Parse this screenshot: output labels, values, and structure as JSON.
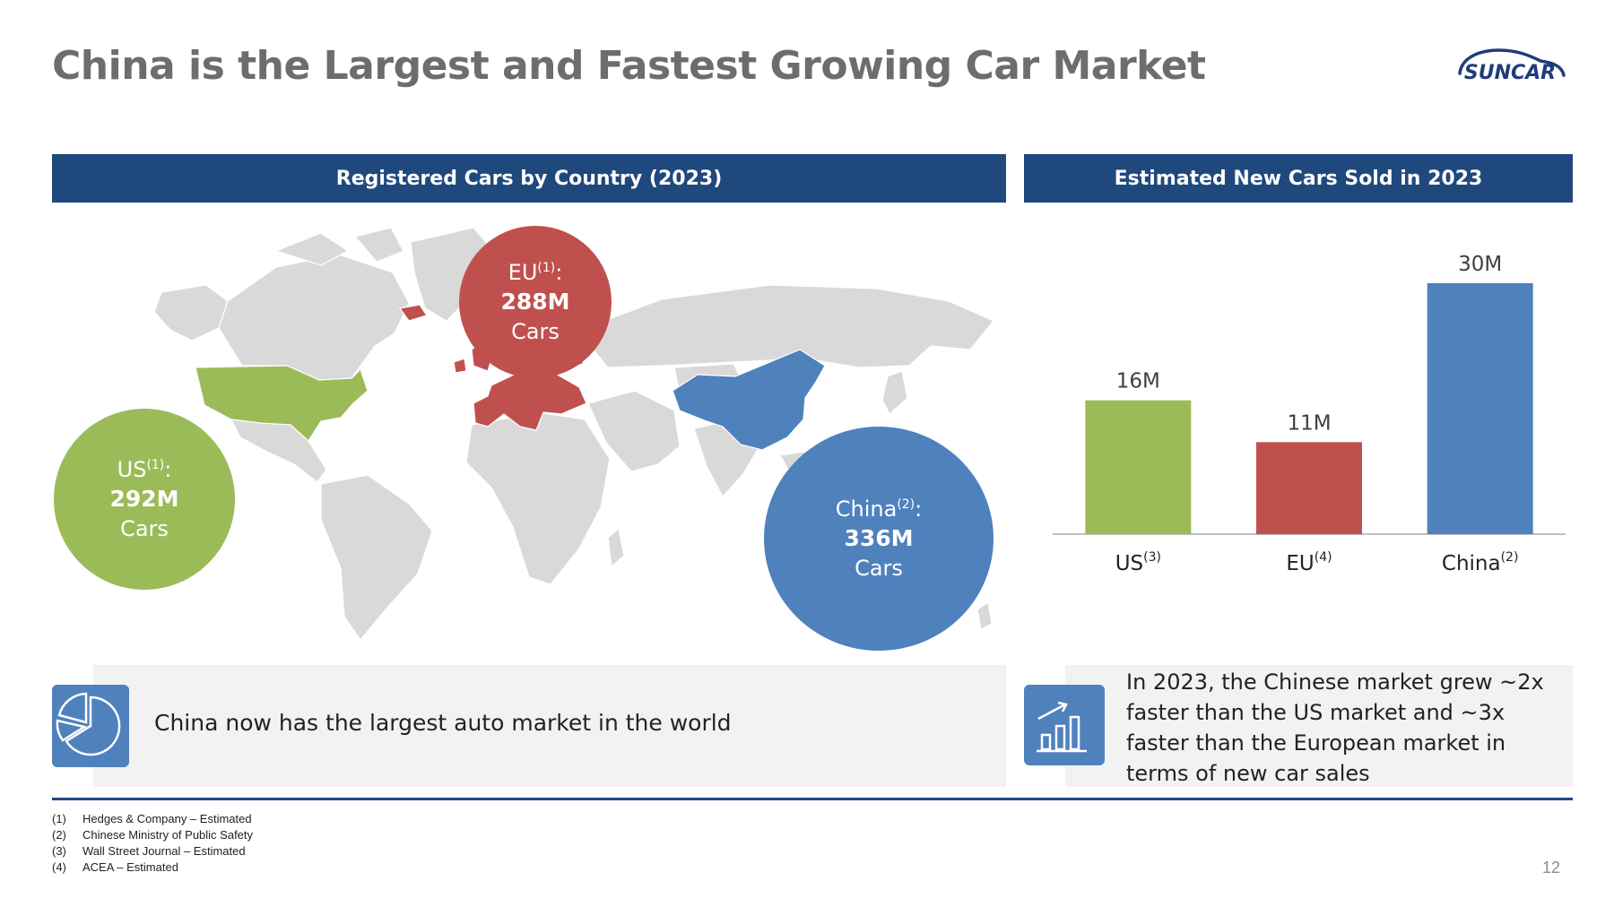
{
  "title": "China is the Largest and Fastest Growing Car Market",
  "logo": {
    "text": "SUNCAR"
  },
  "left_panel": {
    "header": "Registered Cars by Country (2023)",
    "bubbles": {
      "eu": {
        "label": "EU",
        "note": "(1)",
        "colon": ":",
        "value": "288M",
        "unit": "Cars"
      },
      "us": {
        "label": "US",
        "note": "(1)",
        "colon": ":",
        "value": "292M",
        "unit": "Cars"
      },
      "china": {
        "label": "China",
        "note": "(2)",
        "colon": ":",
        "value": "336M",
        "unit": "Cars"
      }
    },
    "callout": "China now has the largest auto market in the world"
  },
  "right_panel": {
    "header": "Estimated New Cars Sold in 2023",
    "callout": "In 2023, the Chinese market grew ~2x faster than the US market and ~3x faster than the European market in terms of new car sales"
  },
  "colors": {
    "navy": "#1f497d",
    "green": "#9bbb59",
    "red": "#c0504d",
    "blue": "#4f81bd",
    "map_gray": "#d9d9d9"
  },
  "chart_data": {
    "type": "bar",
    "title": "Estimated New Cars Sold in 2023",
    "categories": [
      "US",
      "EU",
      "China"
    ],
    "category_notes": [
      "(3)",
      "(4)",
      "(2)"
    ],
    "values": [
      16,
      11,
      30
    ],
    "data_labels": [
      "16M",
      "11M",
      "30M"
    ],
    "bar_colors": [
      "#9bbb59",
      "#c0504d",
      "#4f81bd"
    ],
    "ylim": [
      0,
      30
    ],
    "grid": false
  },
  "footnotes": [
    {
      "num": "(1)",
      "text": "Hedges & Company – Estimated"
    },
    {
      "num": "(2)",
      "text": "Chinese Ministry of Public Safety"
    },
    {
      "num": "(3)",
      "text": "Wall Street Journal – Estimated"
    },
    {
      "num": "(4)",
      "text": "ACEA – Estimated"
    }
  ],
  "page_number": "12"
}
